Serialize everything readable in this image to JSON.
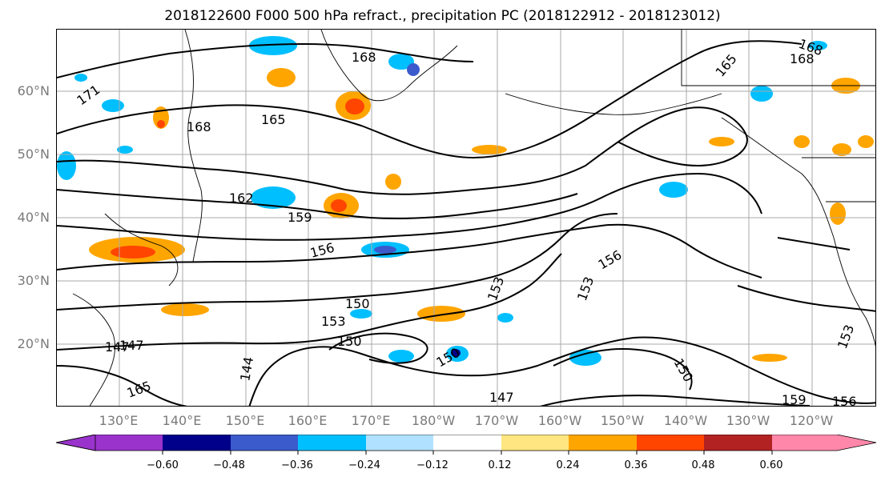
{
  "title": "2018122600 F000 500 hPa refract., precipitation PC (2018122912 - 2018123012)",
  "map": {
    "lat_labels": [
      "60°N",
      "50°N",
      "40°N",
      "30°N",
      "20°N"
    ],
    "lon_labels": [
      "130°E",
      "140°E",
      "150°E",
      "160°E",
      "170°E",
      "180°W",
      "170°W",
      "160°W",
      "150°W",
      "140°W",
      "130°W",
      "120°W"
    ],
    "contour_labels": [
      "171",
      "168",
      "165",
      "168",
      "162",
      "159",
      "156",
      "153",
      "150",
      "147",
      "144",
      "147",
      "150",
      "153",
      "156",
      "159",
      "156",
      "153",
      "150",
      "168",
      "168",
      "165",
      "165",
      "147",
      "150",
      "153"
    ]
  },
  "colorbar": {
    "tick_labels": [
      "−0.60",
      "−0.48",
      "−0.36",
      "−0.24",
      "−0.12",
      "0.12",
      "0.24",
      "0.36",
      "0.48",
      "0.60"
    ],
    "colors": [
      "#9a33cc",
      "#00008b",
      "#3b5bcc",
      "#00bfff",
      "#b0e2ff",
      "#ffffff",
      "#ffe680",
      "#ffa500",
      "#ff4500",
      "#b22222",
      "#ff88aa"
    ]
  }
}
